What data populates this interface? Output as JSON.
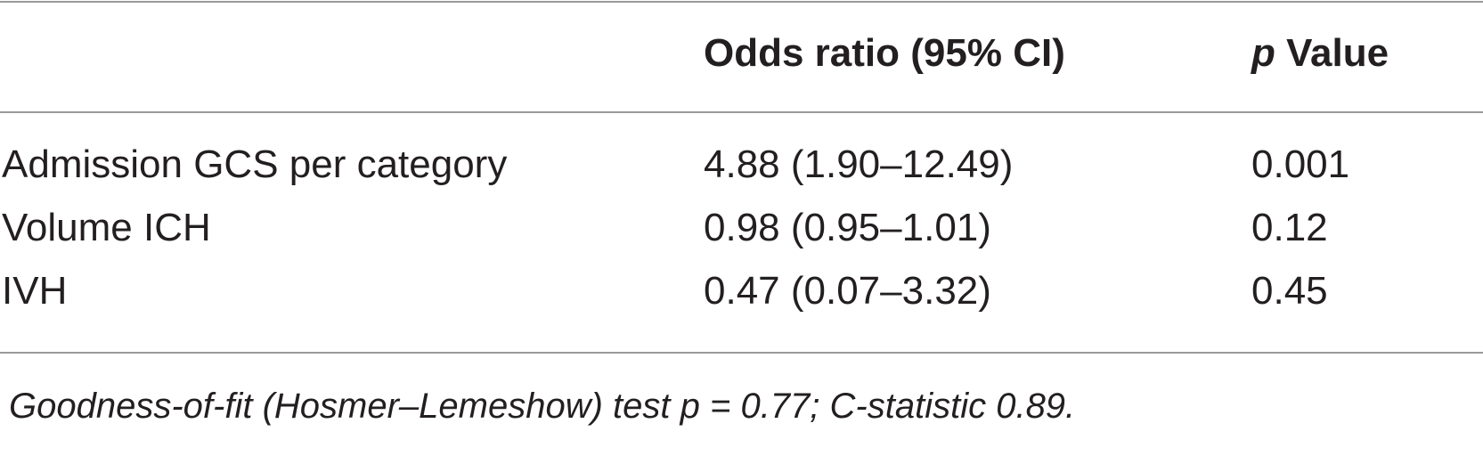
{
  "table": {
    "header": {
      "odds_ratio": "Odds ratio (95% CI)",
      "p_value": {
        "symbol": "p",
        "label": "Value"
      }
    },
    "rows": [
      [
        "Admission GCS per category",
        "4.88 (1.90–12.49)",
        "0.001"
      ],
      [
        "Volume ICH",
        "0.98 (0.95–1.01)",
        "0.12"
      ],
      [
        "IVH",
        "0.47 (0.07–3.32)",
        "0.45"
      ]
    ],
    "footnote": "Goodness-of-fit (Hosmer–Lemeshow) test p = 0.77; C-statistic 0.89."
  }
}
